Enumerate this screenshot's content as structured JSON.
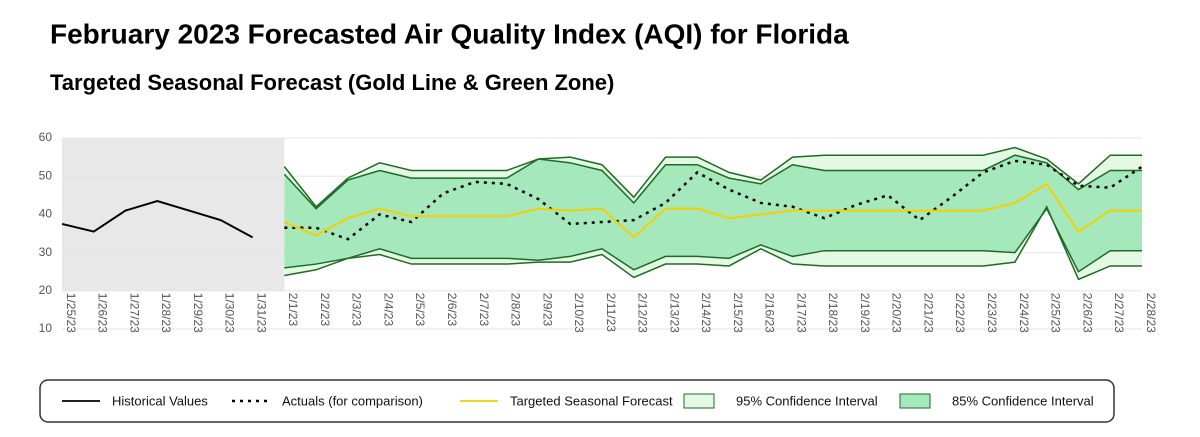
{
  "chart_data": {
    "type": "line",
    "title": "February 2023 Forecasted Air Quality Index (AQI) for Florida",
    "subtitle": "Targeted Seasonal Forecast (Gold Line & Green Zone)",
    "categories": [
      "1/25/23",
      "1/26/23",
      "1/27/23",
      "1/28/23",
      "1/29/23",
      "1/30/23",
      "1/31/23",
      "2/1/23",
      "2/2/23",
      "2/3/23",
      "2/4/23",
      "2/5/23",
      "2/6/23",
      "2/7/23",
      "2/8/23",
      "2/9/23",
      "2/10/23",
      "2/11/23",
      "2/12/23",
      "2/13/23",
      "2/14/23",
      "2/15/23",
      "2/16/23",
      "2/17/23",
      "2/18/23",
      "2/19/23",
      "2/20/23",
      "2/21/23",
      "2/22/23",
      "2/23/23",
      "2/24/23",
      "2/25/23",
      "2/26/23",
      "2/27/23",
      "2/28/23"
    ],
    "ylim": [
      10,
      60
    ],
    "yticks": [
      10,
      20,
      30,
      40,
      50,
      60
    ],
    "grid": true,
    "history_shade_color": "#e8e8e8",
    "series": [
      {
        "name": "Historical Values",
        "color": "#000000",
        "style": "solid",
        "values": [
          37.5,
          35.5,
          41,
          43.5,
          41,
          38.5,
          34,
          null,
          null,
          null,
          null,
          null,
          null,
          null,
          null,
          null,
          null,
          null,
          null,
          null,
          null,
          null,
          null,
          null,
          null,
          null,
          null,
          null,
          null,
          null,
          null,
          null,
          null,
          null,
          null
        ]
      },
      {
        "name": "Actuals (for comparison)",
        "color": "#000000",
        "style": "dotted",
        "values": [
          null,
          null,
          null,
          null,
          null,
          null,
          null,
          36.5,
          36.5,
          33.5,
          40,
          38,
          45.5,
          48.5,
          48,
          44,
          37.5,
          38,
          38.5,
          43,
          51,
          46.5,
          43,
          42,
          39,
          42.5,
          45,
          38.5,
          44.5,
          51,
          54,
          53,
          47.5,
          47,
          52.5
        ]
      },
      {
        "name": "Targeted Seasonal Forecast",
        "color": "#f5cf00",
        "style": "solid",
        "values": [
          null,
          null,
          null,
          null,
          null,
          null,
          null,
          38,
          34.5,
          39,
          41.5,
          39.5,
          39.5,
          39.5,
          39.5,
          41.5,
          41,
          41.5,
          34,
          41.5,
          41.5,
          39,
          40,
          41,
          41,
          41,
          41,
          41,
          41,
          41,
          43,
          48,
          35.5,
          41,
          41
        ]
      },
      {
        "name": "95% Confidence Interval",
        "color": "#e4f9e3",
        "edge_color": "#1e6b25",
        "style": "band",
        "upper": [
          null,
          null,
          null,
          null,
          null,
          null,
          null,
          52.5,
          42,
          49.5,
          53.5,
          51.5,
          51.5,
          51.5,
          51.5,
          54.5,
          55,
          53,
          44.5,
          55,
          55,
          51,
          49,
          55,
          55.5,
          55.5,
          55.5,
          55.5,
          55.5,
          55.5,
          57.5,
          54.5,
          48,
          55.5,
          55.5
        ],
        "lower": [
          null,
          null,
          null,
          null,
          null,
          null,
          null,
          24,
          25.5,
          28.5,
          29.5,
          27,
          27,
          27,
          27,
          27.5,
          27.5,
          29.5,
          23.5,
          27,
          27,
          26.5,
          31,
          27,
          26.5,
          26.5,
          26.5,
          26.5,
          26.5,
          26.5,
          27.5,
          42,
          23,
          26.5,
          26.5
        ]
      },
      {
        "name": "85% Confidence Interval",
        "color": "#a4e8bc",
        "edge_color": "#1e6b25",
        "style": "band",
        "upper": [
          null,
          null,
          null,
          null,
          null,
          null,
          null,
          50.5,
          41.5,
          49,
          51.5,
          49.5,
          49.5,
          49.5,
          49.5,
          54.5,
          53.5,
          51.5,
          43,
          53,
          53,
          49.5,
          48,
          53,
          51.5,
          51.5,
          51.5,
          51.5,
          51.5,
          51.5,
          55.5,
          53.5,
          46.5,
          51.5,
          51.5
        ],
        "lower": [
          null,
          null,
          null,
          null,
          null,
          null,
          null,
          26,
          27,
          28.5,
          31,
          28.5,
          28.5,
          28.5,
          28.5,
          28,
          29,
          31,
          25.5,
          29,
          29,
          28.5,
          32,
          29,
          30.5,
          30.5,
          30.5,
          30.5,
          30.5,
          30.5,
          30,
          41.5,
          25,
          30.5,
          30.5
        ]
      }
    ]
  }
}
